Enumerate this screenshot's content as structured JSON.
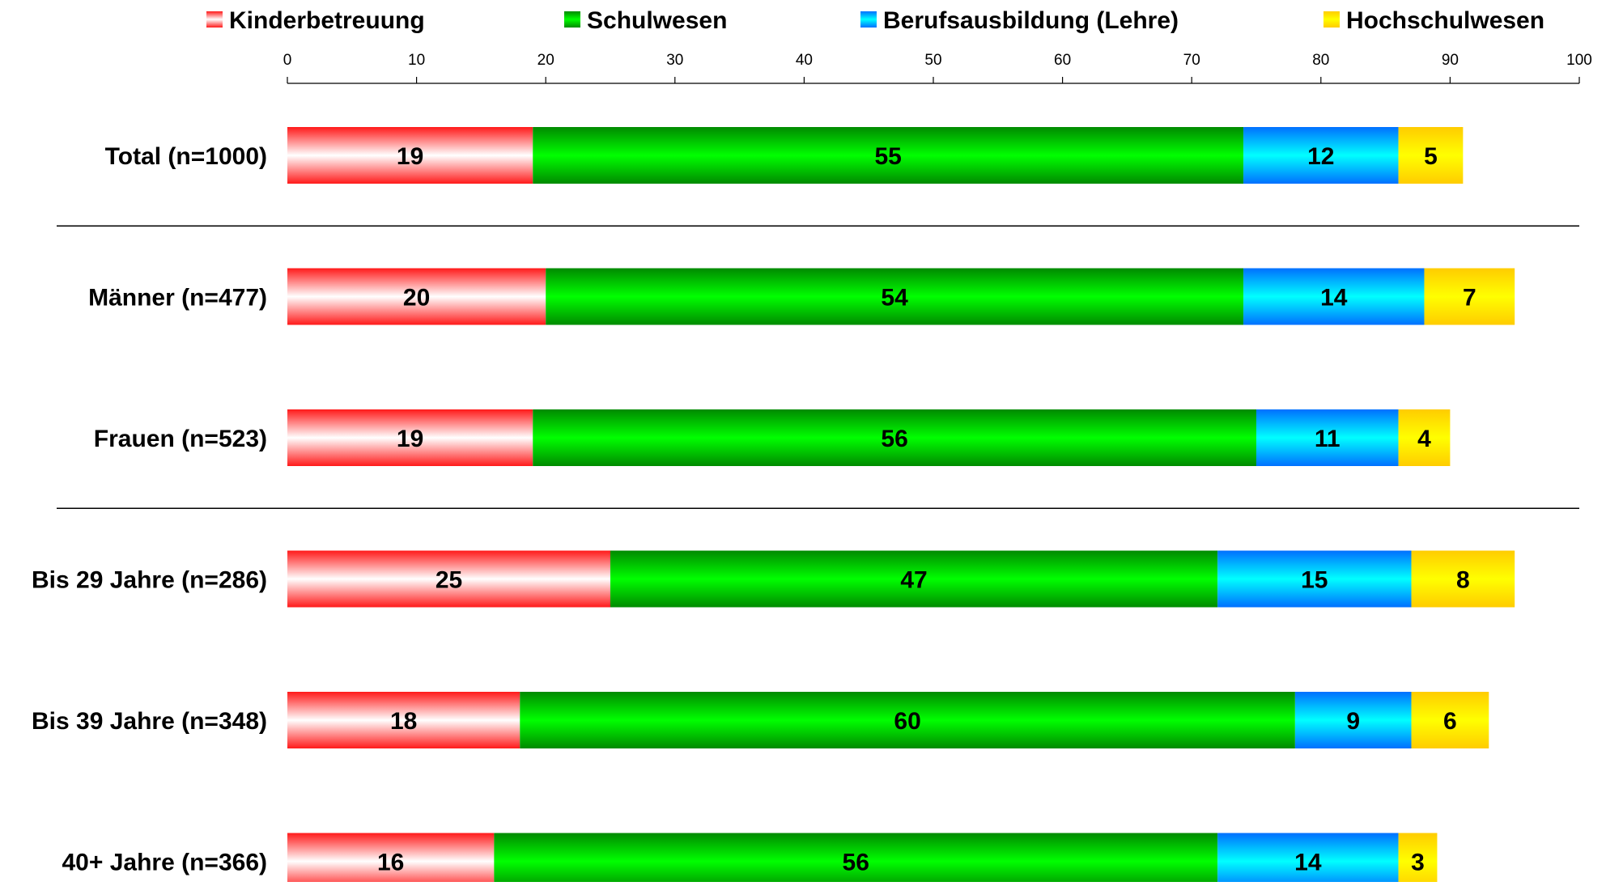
{
  "chart_data": {
    "type": "bar",
    "orientation": "horizontal",
    "stacked": true,
    "xlim": [
      0,
      100
    ],
    "ticks": [
      "0",
      "10",
      "20",
      "30",
      "40",
      "50",
      "60",
      "70",
      "80",
      "90",
      "100"
    ],
    "legend_position": "top",
    "grid": false,
    "categories": [
      "Total (n=1000)",
      "Männer (n=477)",
      "Frauen (n=523)",
      "Bis 29 Jahre (n=286)",
      "Bis 39 Jahre (n=348)",
      "40+ Jahre (n=366)"
    ],
    "group_separators_after": [
      0,
      2
    ],
    "series": [
      {
        "name": "Kinderbetreuung",
        "values": [
          19,
          20,
          19,
          25,
          18,
          16
        ],
        "color_edge": "#ff1a1a",
        "color_center": "#ffffff"
      },
      {
        "name": "Schulwesen",
        "values": [
          55,
          54,
          56,
          47,
          60,
          56
        ],
        "color_edge": "#008a00",
        "color_center": "#00ff00"
      },
      {
        "name": "Berufsausbildung (Lehre)",
        "values": [
          12,
          14,
          11,
          15,
          9,
          14
        ],
        "color_edge": "#0070ff",
        "color_center": "#00ffff"
      },
      {
        "name": "Hochschulwesen",
        "values": [
          5,
          7,
          4,
          8,
          6,
          3
        ],
        "color_edge": "#ffcc00",
        "color_center": "#ffff00"
      }
    ]
  }
}
